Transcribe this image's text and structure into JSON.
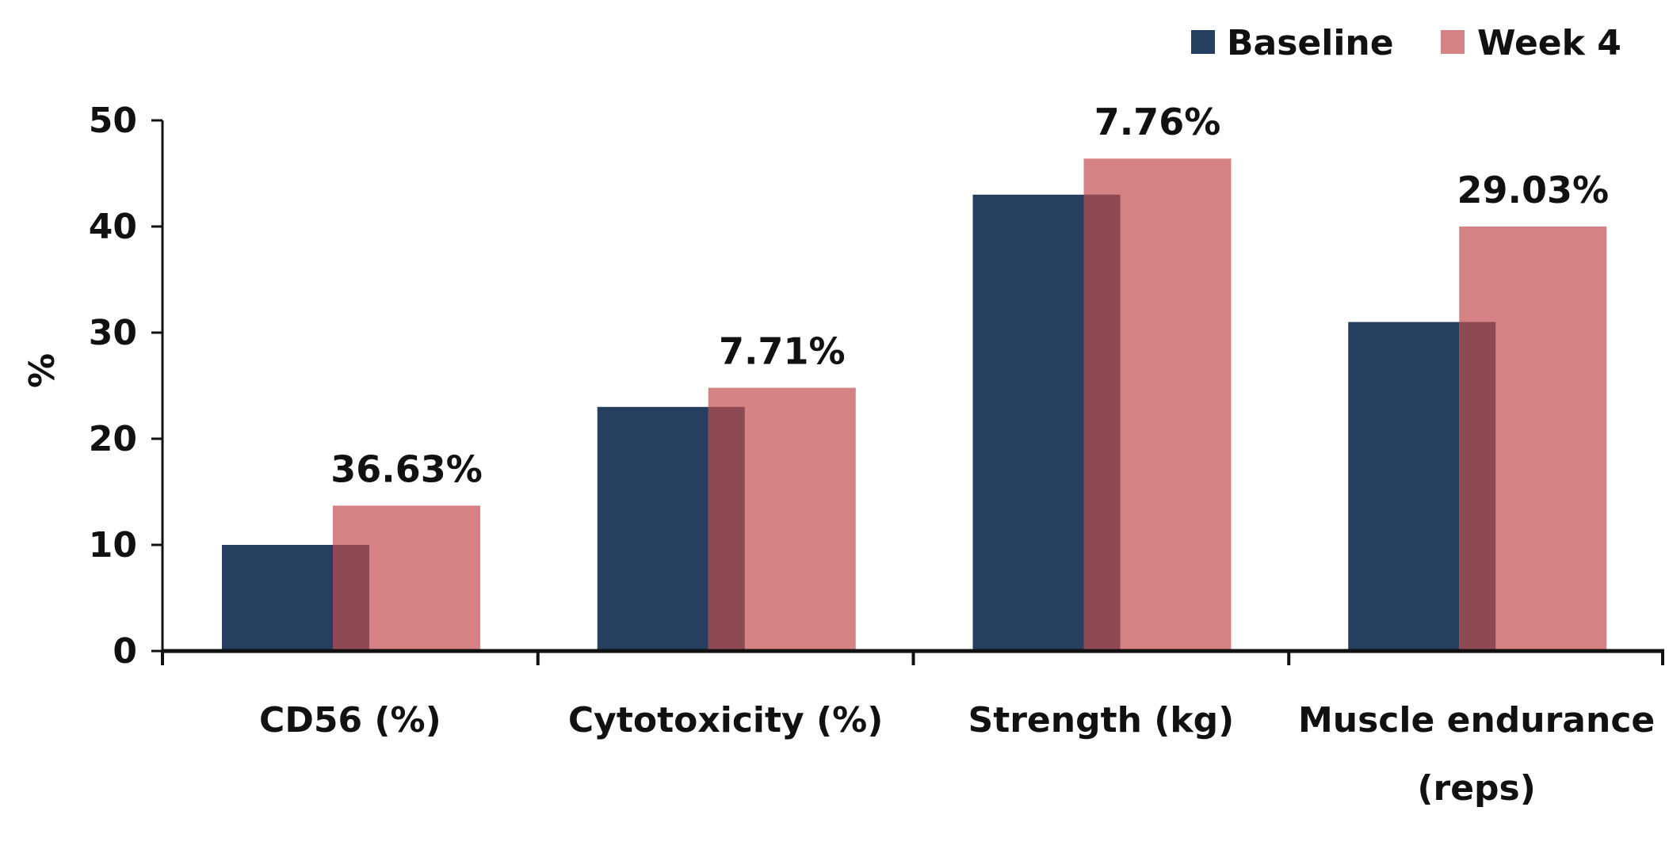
{
  "chart_data": {
    "type": "bar",
    "ylabel": "%",
    "xlabel": "",
    "ylim": [
      0,
      50
    ],
    "yticks": [
      0,
      10,
      20,
      30,
      40,
      50
    ],
    "grid": false,
    "legend_position": "top-right",
    "categories": [
      [
        "CD56 (%)"
      ],
      [
        "Cytotoxicity (%)"
      ],
      [
        "Strength (kg)"
      ],
      [
        "Muscle endurance",
        "(reps)"
      ]
    ],
    "series": [
      {
        "name": "Baseline",
        "color": "#263f60",
        "values": [
          10,
          23,
          43,
          31
        ]
      },
      {
        "name": "Week 4",
        "color": "#d48283",
        "values": [
          13.7,
          24.8,
          46.4,
          40
        ]
      }
    ],
    "overlap_color": "#8e4a52",
    "annotations": [
      "36.63%",
      "7.71%",
      "7.76%",
      "29.03%"
    ]
  }
}
